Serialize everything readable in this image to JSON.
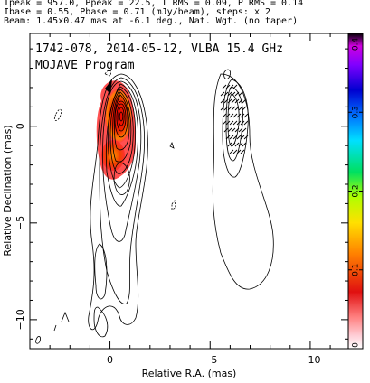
{
  "header": {
    "line1": "Ipeak = 957.0, Ppeak = 22.5, I RMS = 0.09, P RMS = 0.14",
    "line2": "Ibase = 0.55, Pbase = 0.71 (mJy/beam), steps: x 2",
    "line3": "Beam: 1.45x0.47 mas at -6.1 deg., Nat. Wgt. (no taper)"
  },
  "chart_data": {
    "type": "contour",
    "title": "1742-078, 2014-05-12, VLBA 15.4 GHz",
    "subtitle": "MOJAVE Program",
    "xlabel": "Relative R.A. (mas)",
    "ylabel": "Relative Declination (mas)",
    "xlim": [
      4.0,
      -11.9
    ],
    "ylim": [
      -11.5,
      4.8
    ],
    "x_ticks": [
      0,
      -5,
      -10
    ],
    "x_tick_labels": [
      "0",
      "−5",
      "−10"
    ],
    "y_ticks": [
      0,
      -5,
      -10
    ],
    "y_tick_labels": [
      "0",
      "−5",
      "−10"
    ],
    "colorbar": {
      "range": [
        0,
        0.4
      ],
      "ticks": [
        0,
        0.1,
        0.2,
        0.3,
        0.4
      ],
      "tick_labels": [
        "0",
        "0.1",
        "0.2",
        "0.3",
        "0.4"
      ]
    },
    "panels": [
      {
        "name": "total_intensity",
        "center_ra": 0.0,
        "center_dec": 0.0
      },
      {
        "name": "polarization_vectors",
        "center_ra": -6.0,
        "center_dec": 0.0
      }
    ],
    "intensity_peak_mJy_per_beam": 957.0,
    "contour_base_mJy_per_beam": 0.55,
    "contour_step_factor": 2,
    "grid": false,
    "colors": {
      "frame": "#000000",
      "contour": "#000000"
    }
  }
}
